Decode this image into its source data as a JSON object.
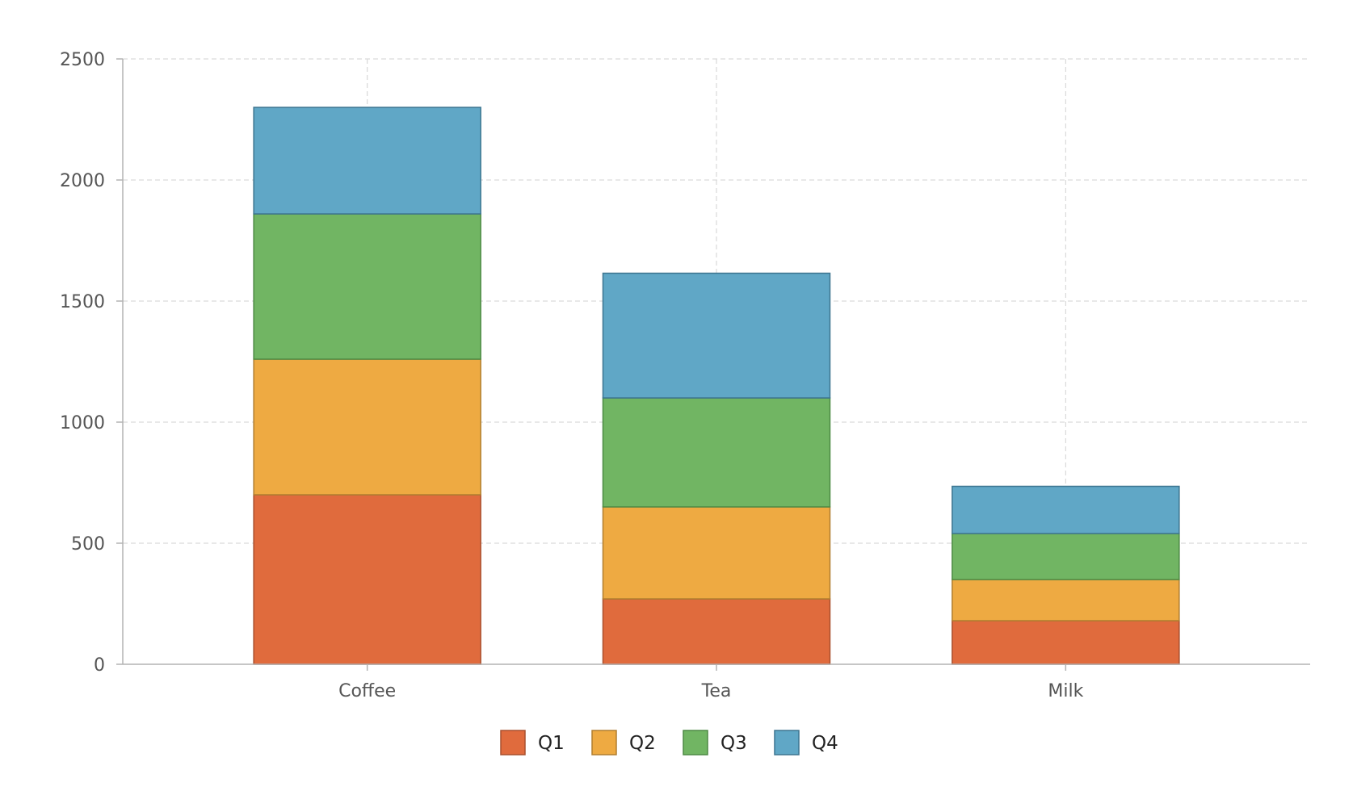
{
  "chart_data": {
    "type": "bar",
    "stacked": true,
    "categories": [
      "Coffee",
      "Tea",
      "Milk"
    ],
    "series": [
      {
        "name": "Q1",
        "values": [
          700,
          270,
          180
        ],
        "color": "#e06b3d",
        "stroke": "#a9502e"
      },
      {
        "name": "Q2",
        "values": [
          560,
          380,
          170
        ],
        "color": "#eeaa42",
        "stroke": "#b07e30"
      },
      {
        "name": "Q3",
        "values": [
          600,
          450,
          190
        ],
        "color": "#71b563",
        "stroke": "#4d8a44"
      },
      {
        "name": "Q4",
        "values": [
          440,
          515,
          195
        ],
        "color": "#60a7c6",
        "stroke": "#3d7590"
      }
    ],
    "ylim": [
      0,
      2500
    ],
    "yticks": [
      0,
      500,
      1000,
      1500,
      2000,
      2500
    ],
    "ytick_labels": [
      "0",
      "500",
      "1000",
      "1500",
      "2000",
      "2500"
    ],
    "grid": true,
    "legend_position": "bottom-center",
    "title": "",
    "xlabel": "",
    "ylabel": ""
  }
}
